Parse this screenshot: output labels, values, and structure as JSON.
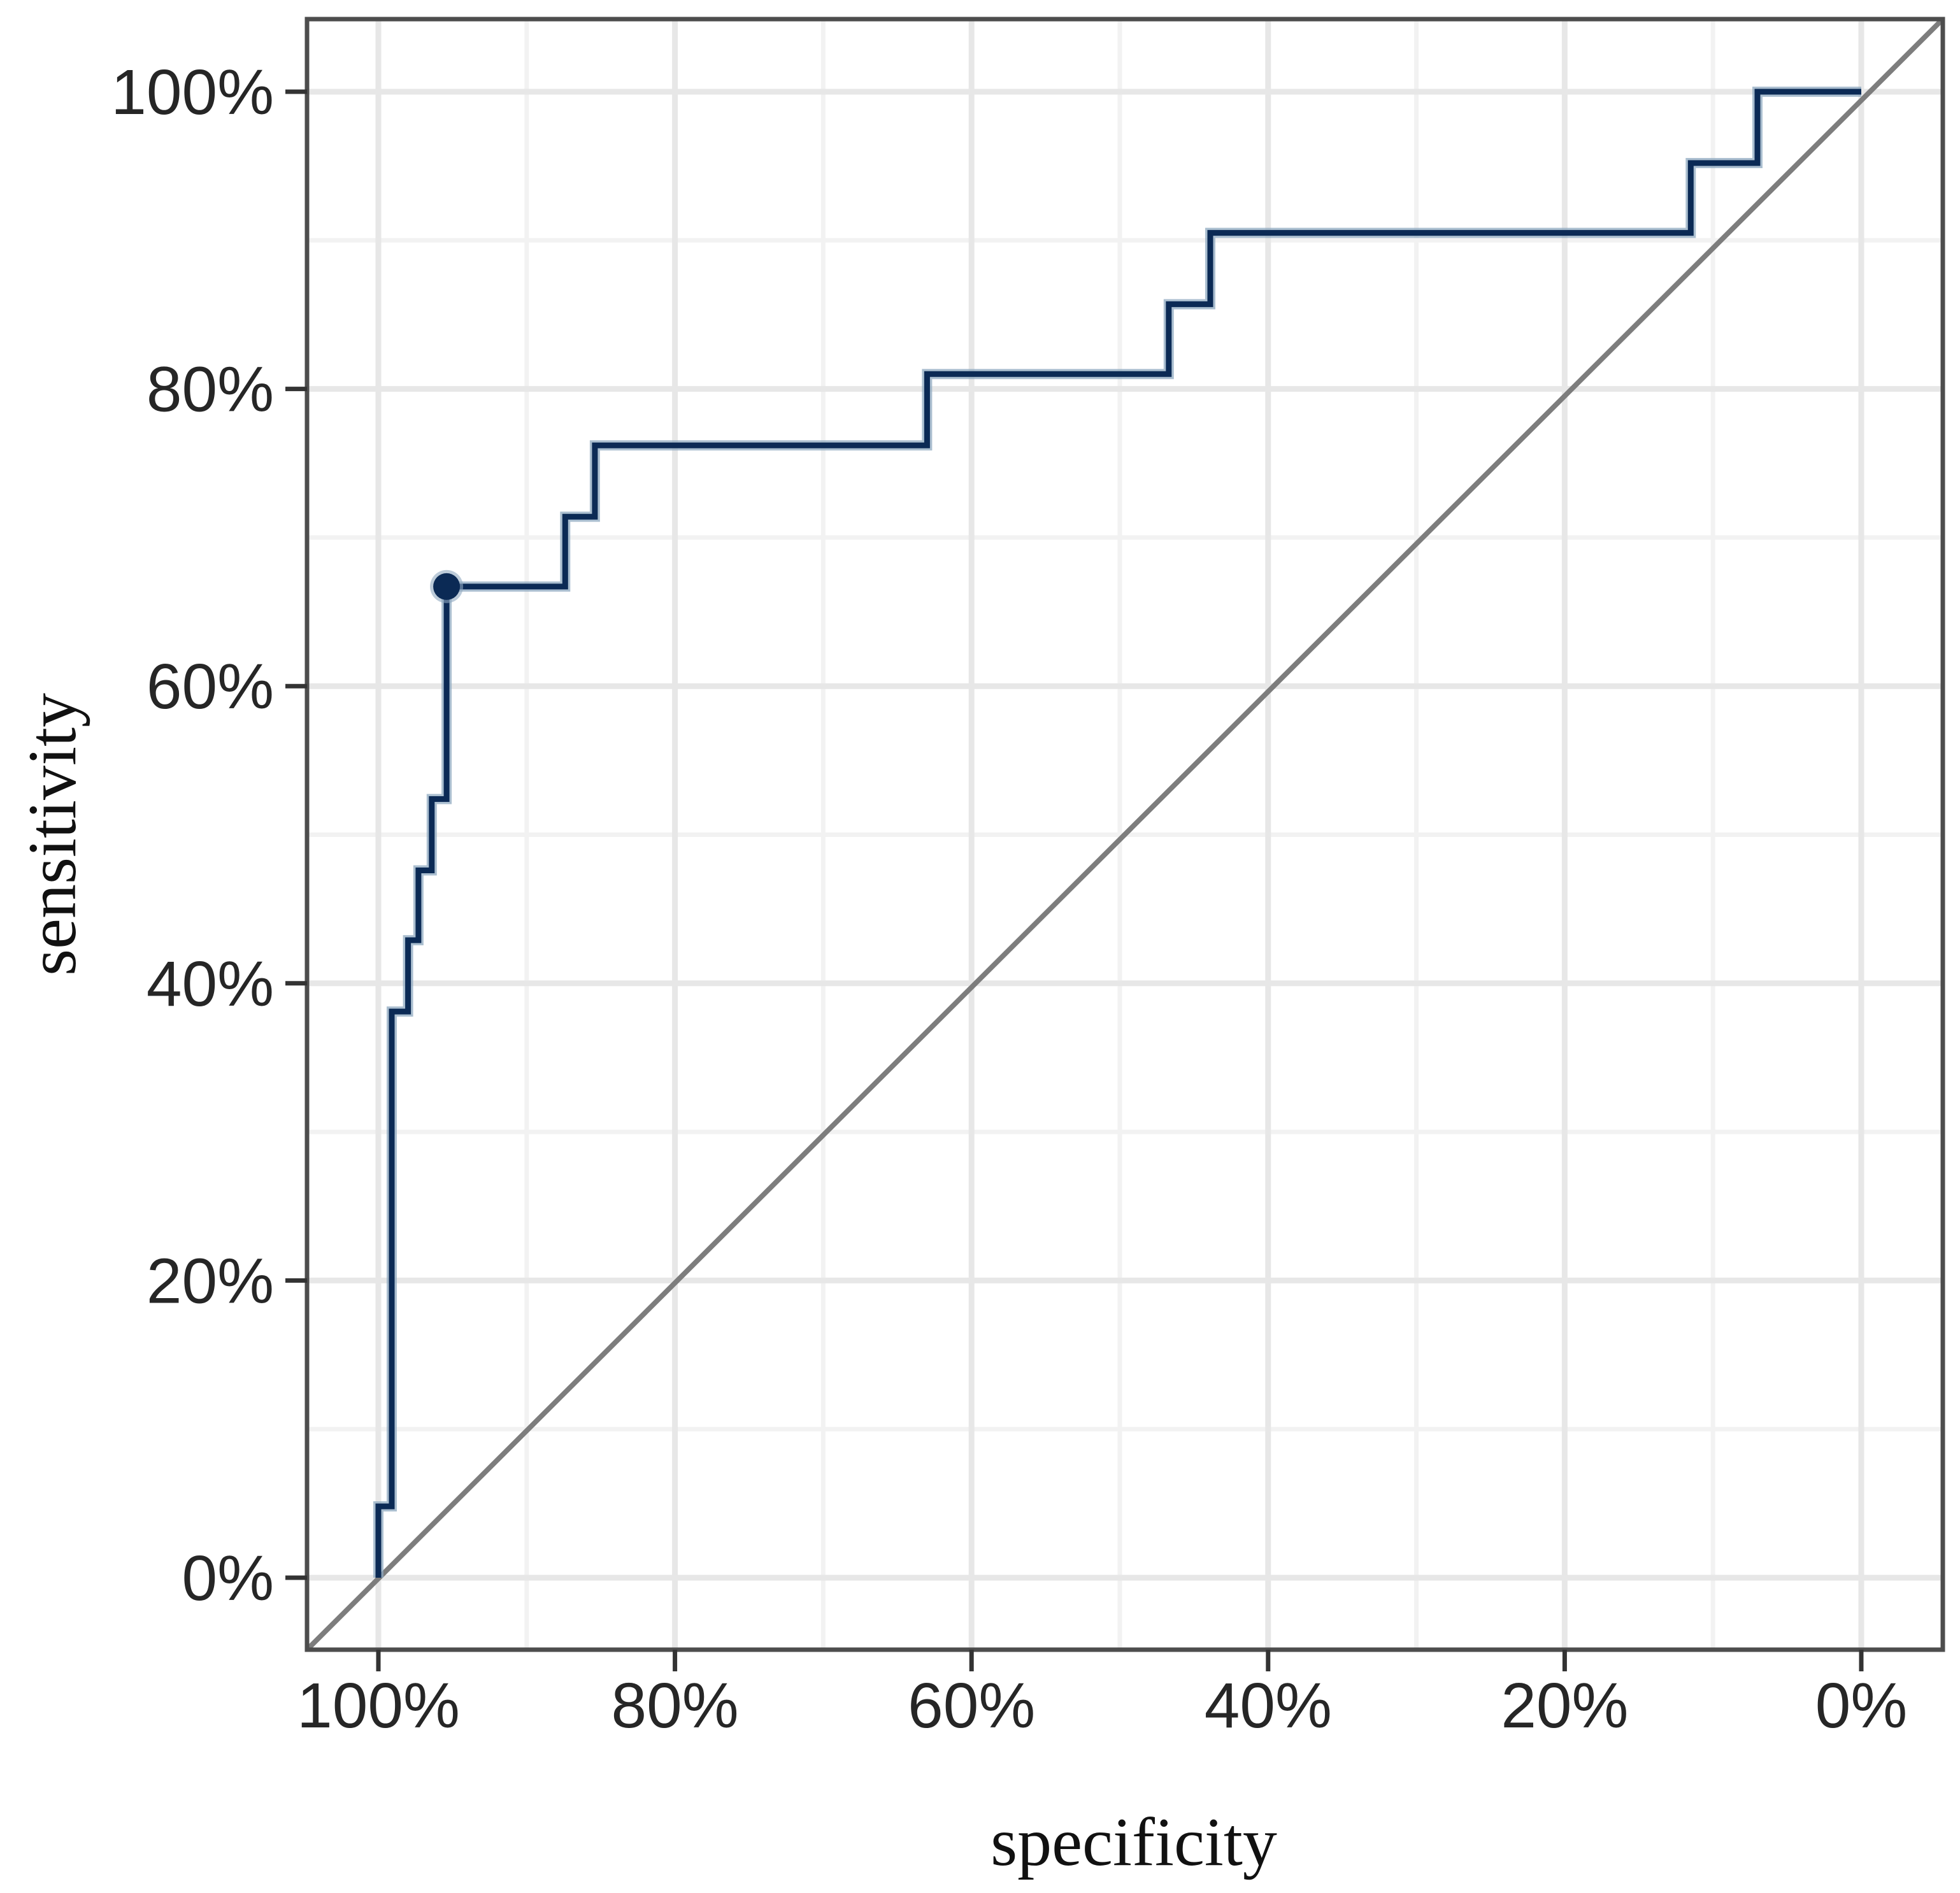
{
  "figure": {
    "background": "#ffffff",
    "title": ""
  },
  "chart_data": {
    "type": "line",
    "subtype": "roc-step-curve",
    "title": "",
    "xlabel": "specificity",
    "ylabel": "sensitivity",
    "x_axis": {
      "label": "specificity",
      "range": [
        0,
        100
      ],
      "reversed": true,
      "ticks": [
        100,
        80,
        60,
        40,
        20,
        0
      ],
      "tick_labels": [
        "100%",
        "80%",
        "60%",
        "40%",
        "20%",
        "0%"
      ],
      "minor_gridlines": [
        90,
        70,
        50,
        30,
        10
      ],
      "unit": "%"
    },
    "y_axis": {
      "label": "sensitivity",
      "range": [
        0,
        100
      ],
      "reversed": false,
      "ticks": [
        0,
        20,
        40,
        60,
        80,
        100
      ],
      "tick_labels": [
        "0%",
        "20%",
        "40%",
        "60%",
        "80%",
        "100%"
      ],
      "minor_gridlines": [
        10,
        30,
        50,
        70,
        90
      ],
      "unit": "%"
    },
    "grid": true,
    "legend_position": "none",
    "series": [
      {
        "name": "ROC curve",
        "type": "step",
        "color": "#0b2a55",
        "halo_color": "#8fa9c0",
        "points_spec_sens": [
          [
            100,
            0
          ],
          [
            100,
            4.8
          ],
          [
            99.1,
            4.8
          ],
          [
            99.1,
            38.1
          ],
          [
            98.0,
            38.1
          ],
          [
            98.0,
            42.9
          ],
          [
            97.3,
            42.9
          ],
          [
            97.3,
            47.6
          ],
          [
            96.4,
            47.6
          ],
          [
            96.4,
            52.4
          ],
          [
            95.4,
            52.4
          ],
          [
            95.4,
            66.7
          ],
          [
            87.4,
            66.7
          ],
          [
            87.4,
            71.4
          ],
          [
            85.4,
            71.4
          ],
          [
            85.4,
            76.2
          ],
          [
            63.0,
            76.2
          ],
          [
            63.0,
            81.0
          ],
          [
            46.7,
            81.0
          ],
          [
            46.7,
            85.7
          ],
          [
            43.9,
            85.7
          ],
          [
            43.9,
            90.5
          ],
          [
            11.5,
            90.5
          ],
          [
            11.5,
            95.2
          ],
          [
            7.0,
            95.2
          ],
          [
            7.0,
            100
          ],
          [
            0,
            100
          ]
        ]
      },
      {
        "name": "chance diagonal",
        "type": "reference-line",
        "color": "#7d7d7d",
        "points_spec_sens": [
          [
            100,
            0
          ],
          [
            0,
            100
          ]
        ]
      }
    ],
    "optimal_point": {
      "specificity": 95.4,
      "sensitivity": 66.7,
      "color": "#0b2a55"
    }
  },
  "colors": {
    "curve": "#0b2a55",
    "curve_halo": "#8fa9c0",
    "diagonal": "#7d7d7d",
    "panel_border": "#4d4d4d",
    "grid_major": "#e7e7e7",
    "grid_minor": "#f2f2f2",
    "tick_mark": "#333333",
    "tick_text": "#262626",
    "axis_title_text": "#111111",
    "background": "#ffffff"
  }
}
